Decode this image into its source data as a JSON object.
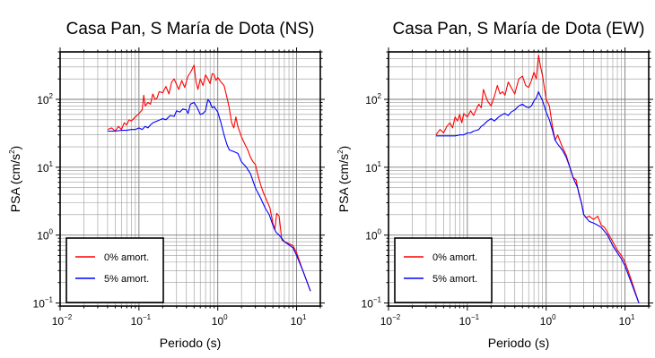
{
  "chart_data": [
    {
      "type": "line",
      "title": "Casa Pan, S María de Dota (NS)",
      "xlabel": "Periodo (s)",
      "ylabel_main": "PSA (cm/s",
      "ylabel_sup": "2",
      "ylabel_tail": ")",
      "xscale": "log",
      "yscale": "log",
      "xlim": [
        0.01,
        20
      ],
      "ylim": [
        0.09,
        500
      ],
      "grid": true,
      "legend_placement": "bottom-left",
      "x_ticks": [
        {
          "value": 0.01,
          "base": "10",
          "exp": "−2"
        },
        {
          "value": 0.1,
          "base": "10",
          "exp": "−1"
        },
        {
          "value": 1,
          "base": "10",
          "exp": "0"
        },
        {
          "value": 10,
          "base": "10",
          "exp": "1"
        }
      ],
      "y_ticks": [
        {
          "value": 0.1,
          "base": "10",
          "exp": "−1"
        },
        {
          "value": 1,
          "base": "10",
          "exp": "0"
        },
        {
          "value": 10,
          "base": "10",
          "exp": "1"
        },
        {
          "value": 100,
          "base": "10",
          "exp": "2"
        }
      ],
      "series": [
        {
          "name": "0% amort.",
          "color": "#ff0000",
          "points": [
            [
              0.04,
              36
            ],
            [
              0.045,
              38
            ],
            [
              0.05,
              34
            ],
            [
              0.055,
              40
            ],
            [
              0.06,
              36
            ],
            [
              0.065,
              45
            ],
            [
              0.07,
              42
            ],
            [
              0.075,
              50
            ],
            [
              0.08,
              48
            ],
            [
              0.09,
              55
            ],
            [
              0.1,
              62
            ],
            [
              0.11,
              70
            ],
            [
              0.115,
              115
            ],
            [
              0.12,
              80
            ],
            [
              0.13,
              90
            ],
            [
              0.14,
              85
            ],
            [
              0.15,
              120
            ],
            [
              0.16,
              100
            ],
            [
              0.17,
              105
            ],
            [
              0.18,
              130
            ],
            [
              0.2,
              125
            ],
            [
              0.22,
              155
            ],
            [
              0.24,
              120
            ],
            [
              0.26,
              180
            ],
            [
              0.28,
              200
            ],
            [
              0.3,
              165
            ],
            [
              0.32,
              140
            ],
            [
              0.35,
              190
            ],
            [
              0.38,
              150
            ],
            [
              0.42,
              220
            ],
            [
              0.46,
              260
            ],
            [
              0.5,
              320
            ],
            [
              0.53,
              180
            ],
            [
              0.56,
              140
            ],
            [
              0.6,
              200
            ],
            [
              0.65,
              160
            ],
            [
              0.7,
              230
            ],
            [
              0.75,
              200
            ],
            [
              0.8,
              170
            ],
            [
              0.85,
              240
            ],
            [
              0.9,
              230
            ],
            [
              0.95,
              190
            ],
            [
              1.0,
              210
            ],
            [
              1.1,
              180
            ],
            [
              1.2,
              160
            ],
            [
              1.3,
              110
            ],
            [
              1.4,
              75
            ],
            [
              1.5,
              45
            ],
            [
              1.6,
              38
            ],
            [
              1.7,
              55
            ],
            [
              1.8,
              40
            ],
            [
              2.0,
              28
            ],
            [
              2.2,
              22
            ],
            [
              2.4,
              18
            ],
            [
              2.6,
              14
            ],
            [
              2.8,
              12
            ],
            [
              3.0,
              11
            ],
            [
              3.2,
              8
            ],
            [
              3.5,
              5.5
            ],
            [
              3.8,
              4.2
            ],
            [
              4.2,
              3.2
            ],
            [
              4.6,
              2.5
            ],
            [
              5.0,
              1.5
            ],
            [
              5.3,
              1.2
            ],
            [
              5.6,
              2.1
            ],
            [
              6.0,
              1.9
            ],
            [
              6.5,
              0.85
            ],
            [
              7.0,
              0.8
            ],
            [
              8.0,
              0.75
            ],
            [
              9.0,
              0.7
            ],
            [
              10.0,
              0.55
            ],
            [
              12.0,
              0.3
            ],
            [
              15.0,
              0.15
            ]
          ]
        },
        {
          "name": "5% amort.",
          "color": "#0000ff",
          "points": [
            [
              0.04,
              34
            ],
            [
              0.05,
              34
            ],
            [
              0.06,
              35
            ],
            [
              0.07,
              35
            ],
            [
              0.08,
              36
            ],
            [
              0.09,
              36
            ],
            [
              0.1,
              38
            ],
            [
              0.11,
              36
            ],
            [
              0.12,
              40
            ],
            [
              0.13,
              38
            ],
            [
              0.14,
              42
            ],
            [
              0.15,
              45
            ],
            [
              0.17,
              48
            ],
            [
              0.2,
              52
            ],
            [
              0.22,
              50
            ],
            [
              0.25,
              58
            ],
            [
              0.28,
              56
            ],
            [
              0.3,
              68
            ],
            [
              0.33,
              65
            ],
            [
              0.36,
              72
            ],
            [
              0.4,
              70
            ],
            [
              0.42,
              62
            ],
            [
              0.45,
              85
            ],
            [
              0.5,
              90
            ],
            [
              0.55,
              75
            ],
            [
              0.6,
              60
            ],
            [
              0.65,
              62
            ],
            [
              0.7,
              68
            ],
            [
              0.75,
              100
            ],
            [
              0.8,
              90
            ],
            [
              0.85,
              75
            ],
            [
              0.9,
              78
            ],
            [
              1.0,
              65
            ],
            [
              1.1,
              45
            ],
            [
              1.2,
              30
            ],
            [
              1.3,
              22
            ],
            [
              1.4,
              18
            ],
            [
              1.6,
              17
            ],
            [
              1.8,
              16
            ],
            [
              2.0,
              12
            ],
            [
              2.3,
              10
            ],
            [
              2.6,
              8
            ],
            [
              3.0,
              5
            ],
            [
              3.5,
              3.5
            ],
            [
              4.0,
              2.5
            ],
            [
              4.5,
              2
            ],
            [
              5.0,
              1.4
            ],
            [
              5.5,
              1.1
            ],
            [
              6.0,
              1.0
            ],
            [
              7.0,
              0.8
            ],
            [
              8.0,
              0.72
            ],
            [
              9.0,
              0.65
            ],
            [
              10.0,
              0.5
            ],
            [
              12.0,
              0.3
            ],
            [
              15.0,
              0.15
            ]
          ]
        }
      ]
    },
    {
      "type": "line",
      "title": "Casa Pan, S María de Dota (EW)",
      "xlabel": "Periodo (s)",
      "ylabel_main": "PSA (cm/s",
      "ylabel_sup": "2",
      "ylabel_tail": ")",
      "xscale": "log",
      "yscale": "log",
      "xlim": [
        0.01,
        20
      ],
      "ylim": [
        0.09,
        500
      ],
      "grid": true,
      "legend_placement": "bottom-left",
      "x_ticks": [
        {
          "value": 0.01,
          "base": "10",
          "exp": "−2"
        },
        {
          "value": 0.1,
          "base": "10",
          "exp": "−1"
        },
        {
          "value": 1,
          "base": "10",
          "exp": "0"
        },
        {
          "value": 10,
          "base": "10",
          "exp": "1"
        }
      ],
      "y_ticks": [
        {
          "value": 0.1,
          "base": "10",
          "exp": "−1"
        },
        {
          "value": 1,
          "base": "10",
          "exp": "0"
        },
        {
          "value": 10,
          "base": "10",
          "exp": "1"
        },
        {
          "value": 100,
          "base": "10",
          "exp": "2"
        }
      ],
      "series": [
        {
          "name": "0% amort.",
          "color": "#ff0000",
          "points": [
            [
              0.04,
              30
            ],
            [
              0.045,
              36
            ],
            [
              0.05,
              32
            ],
            [
              0.055,
              40
            ],
            [
              0.06,
              45
            ],
            [
              0.065,
              38
            ],
            [
              0.07,
              55
            ],
            [
              0.075,
              48
            ],
            [
              0.08,
              60
            ],
            [
              0.085,
              45
            ],
            [
              0.09,
              62
            ],
            [
              0.1,
              55
            ],
            [
              0.11,
              68
            ],
            [
              0.12,
              58
            ],
            [
              0.13,
              72
            ],
            [
              0.14,
              85
            ],
            [
              0.15,
              75
            ],
            [
              0.16,
              140
            ],
            [
              0.18,
              95
            ],
            [
              0.2,
              80
            ],
            [
              0.22,
              110
            ],
            [
              0.24,
              160
            ],
            [
              0.26,
              120
            ],
            [
              0.28,
              130
            ],
            [
              0.3,
              115
            ],
            [
              0.33,
              180
            ],
            [
              0.36,
              150
            ],
            [
              0.4,
              120
            ],
            [
              0.45,
              200
            ],
            [
              0.5,
              220
            ],
            [
              0.55,
              160
            ],
            [
              0.6,
              150
            ],
            [
              0.65,
              190
            ],
            [
              0.7,
              250
            ],
            [
              0.75,
              200
            ],
            [
              0.8,
              450
            ],
            [
              0.85,
              300
            ],
            [
              0.9,
              220
            ],
            [
              1.0,
              100
            ],
            [
              1.1,
              80
            ],
            [
              1.2,
              40
            ],
            [
              1.3,
              25
            ],
            [
              1.4,
              30
            ],
            [
              1.6,
              20
            ],
            [
              1.8,
              15
            ],
            [
              2.0,
              10
            ],
            [
              2.2,
              7
            ],
            [
              2.4,
              6.5
            ],
            [
              2.6,
              4
            ],
            [
              2.8,
              3
            ],
            [
              3.0,
              2
            ],
            [
              3.2,
              1.8
            ],
            [
              3.5,
              1.9
            ],
            [
              4.0,
              1.7
            ],
            [
              4.5,
              1.9
            ],
            [
              5.0,
              1.4
            ],
            [
              5.5,
              1.3
            ],
            [
              6.0,
              1.1
            ],
            [
              7.0,
              0.8
            ],
            [
              8.0,
              0.6
            ],
            [
              9.0,
              0.5
            ],
            [
              10.0,
              0.4
            ],
            [
              12.0,
              0.22
            ],
            [
              15.0,
              0.1
            ]
          ]
        },
        {
          "name": "5% amort.",
          "color": "#0000ff",
          "points": [
            [
              0.04,
              29
            ],
            [
              0.05,
              29
            ],
            [
              0.06,
              29
            ],
            [
              0.07,
              29
            ],
            [
              0.08,
              30
            ],
            [
              0.09,
              30
            ],
            [
              0.1,
              32
            ],
            [
              0.11,
              32
            ],
            [
              0.12,
              34
            ],
            [
              0.13,
              35
            ],
            [
              0.14,
              36
            ],
            [
              0.15,
              40
            ],
            [
              0.16,
              42
            ],
            [
              0.17,
              45
            ],
            [
              0.18,
              48
            ],
            [
              0.2,
              52
            ],
            [
              0.22,
              48
            ],
            [
              0.25,
              55
            ],
            [
              0.28,
              60
            ],
            [
              0.3,
              62
            ],
            [
              0.33,
              58
            ],
            [
              0.36,
              65
            ],
            [
              0.4,
              70
            ],
            [
              0.45,
              80
            ],
            [
              0.5,
              85
            ],
            [
              0.55,
              78
            ],
            [
              0.6,
              75
            ],
            [
              0.65,
              80
            ],
            [
              0.7,
              95
            ],
            [
              0.75,
              105
            ],
            [
              0.8,
              130
            ],
            [
              0.85,
              110
            ],
            [
              0.9,
              95
            ],
            [
              1.0,
              65
            ],
            [
              1.1,
              50
            ],
            [
              1.2,
              35
            ],
            [
              1.3,
              25
            ],
            [
              1.4,
              22
            ],
            [
              1.6,
              18
            ],
            [
              1.8,
              14
            ],
            [
              2.0,
              10
            ],
            [
              2.2,
              7
            ],
            [
              2.5,
              5
            ],
            [
              2.8,
              3
            ],
            [
              3.0,
              2
            ],
            [
              3.5,
              1.6
            ],
            [
              4.0,
              1.5
            ],
            [
              4.5,
              1.4
            ],
            [
              5.0,
              1.3
            ],
            [
              6.0,
              1.0
            ],
            [
              7.0,
              0.7
            ],
            [
              8.0,
              0.55
            ],
            [
              9.0,
              0.45
            ],
            [
              10.0,
              0.35
            ],
            [
              12.0,
              0.2
            ],
            [
              15.0,
              0.1
            ]
          ]
        }
      ]
    }
  ]
}
